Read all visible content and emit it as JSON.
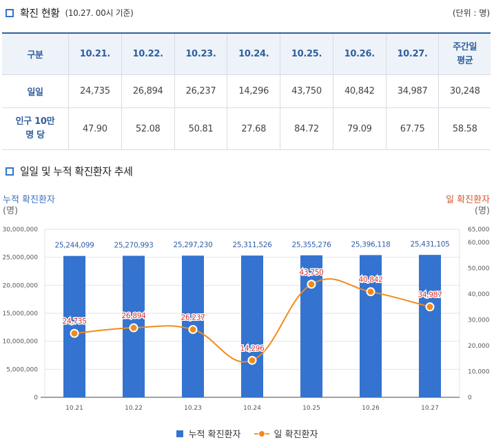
{
  "section1": {
    "title": "확진 현황",
    "subtitle": "(10.27. 00시 기준)",
    "unit": "(단위 : 명)"
  },
  "table": {
    "headers": [
      "구분",
      "10.21.",
      "10.22.",
      "10.23.",
      "10.24.",
      "10.25.",
      "10.26.",
      "10.27.",
      "주간일\n평균"
    ],
    "rows": [
      {
        "label": "일일",
        "values": [
          "24,735",
          "26,894",
          "26,237",
          "14,296",
          "43,750",
          "40,842",
          "34,987",
          "30,248"
        ]
      },
      {
        "label": "인구 10만\n명 당",
        "values": [
          "47.90",
          "52.08",
          "50.81",
          "27.68",
          "84.72",
          "79.09",
          "67.75",
          "58.58"
        ]
      }
    ]
  },
  "section2": {
    "title": "일일 및 누적 확진환자 추세"
  },
  "chart_data": {
    "type": "bar+line",
    "categories": [
      "10.21",
      "10.22",
      "10.23",
      "10.24",
      "10.25",
      "10.26",
      "10.27"
    ],
    "series": [
      {
        "name": "누적 확진환자",
        "type": "bar",
        "axis": "left",
        "color": "#3473cf",
        "values": [
          25244099,
          25270993,
          25297230,
          25311526,
          25355276,
          25396118,
          25431105
        ],
        "labels": [
          "25,244,099",
          "25,270,993",
          "25,297,230",
          "25,311,526",
          "25,355,276",
          "25,396,118",
          "25,431,105"
        ]
      },
      {
        "name": "일 확진환자",
        "type": "line",
        "axis": "right",
        "color": "#f28a1a",
        "values": [
          24735,
          26894,
          26237,
          14296,
          43750,
          40842,
          34987
        ],
        "labels": [
          "24,735",
          "26,894",
          "26,237",
          "14,296",
          "43,750",
          "40,842",
          "34,987"
        ]
      }
    ],
    "left_axis": {
      "title": "누적 확진환자",
      "unit": "(명)",
      "ylim": [
        0,
        30000000
      ],
      "ticks": [
        0,
        5000000,
        10000000,
        15000000,
        20000000,
        25000000,
        30000000
      ],
      "tick_labels": [
        "0",
        "5,000,000",
        "10,000,000",
        "15,000,000",
        "20,000,000",
        "25,000,000",
        "30,000,000"
      ]
    },
    "right_axis": {
      "title": "일 확진환자",
      "unit": "(명)",
      "ylim": [
        0,
        65000
      ],
      "ticks": [
        0,
        10000,
        20000,
        30000,
        40000,
        50000,
        60000,
        65000
      ],
      "tick_labels": [
        "0",
        "10,000",
        "20,000",
        "30,000",
        "40,000",
        "50,000",
        "60,000",
        "65,000"
      ]
    },
    "legend": [
      "누적 확진환자",
      "일 확진환자"
    ],
    "grid": true
  }
}
